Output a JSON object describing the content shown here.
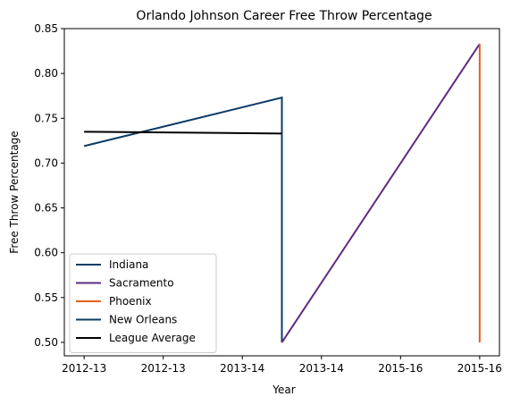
{
  "chart_data": {
    "type": "line",
    "title": "Orlando Johnson Career Free Throw Percentage",
    "xlabel": "Year",
    "ylabel": "Free Throw Percentage",
    "xlim": [
      -0.15,
      3.15
    ],
    "ylim": [
      0.485,
      0.85
    ],
    "x_ticks": [
      {
        "value": 0,
        "label": "2012-13"
      },
      {
        "value": 0.6,
        "label": "2012-13"
      },
      {
        "value": 1.2,
        "label": "2013-14"
      },
      {
        "value": 1.8,
        "label": "2013-14"
      },
      {
        "value": 2.4,
        "label": "2015-16"
      },
      {
        "value": 3.0,
        "label": "2015-16"
      }
    ],
    "y_ticks": [
      0.5,
      0.55,
      0.6,
      0.65,
      0.7,
      0.75,
      0.8,
      0.85
    ],
    "y_tick_labels": [
      "0.50",
      "0.55",
      "0.60",
      "0.65",
      "0.70",
      "0.75",
      "0.80",
      "0.85"
    ],
    "grid": false,
    "legend_position": "lower-left",
    "series": [
      {
        "name": "Indiana",
        "color": "#0d3b66",
        "points": [
          [
            0,
            0.719
          ],
          [
            1.5,
            0.773
          ],
          [
            1.5,
            0.5
          ]
        ]
      },
      {
        "name": "Sacramento",
        "color": "#5a2d82",
        "points": [
          [
            1.5,
            0.5
          ],
          [
            3.0,
            0.833
          ]
        ]
      },
      {
        "name": "Phoenix",
        "color": "#e56020",
        "points": [
          [
            3.0,
            0.833
          ],
          [
            3.0,
            0.5
          ]
        ]
      },
      {
        "name": "New Orleans",
        "color": "#0d3b66",
        "points": []
      },
      {
        "name": "League Average",
        "color": "#000000",
        "points": [
          [
            0,
            0.735
          ],
          [
            1.5,
            0.733
          ]
        ]
      }
    ]
  }
}
